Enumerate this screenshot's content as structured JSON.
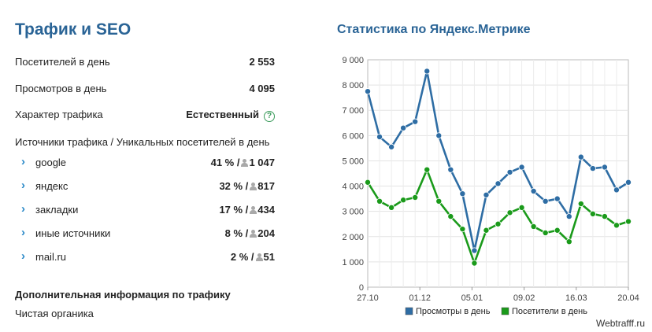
{
  "left": {
    "title": "Трафик и SEO",
    "visitors_label": "Посетителей в день",
    "visitors_value": "2 553",
    "views_label": "Просмотров в день",
    "views_value": "4 095",
    "character_label": "Характер трафика",
    "character_value": "Естественный",
    "help_icon": "?",
    "sources_label": "Источники трафика / Уникальных посетителей в день",
    "sources": [
      {
        "name": "google",
        "percent": "41 % /",
        "count": "1 047"
      },
      {
        "name": "яндекс",
        "percent": "32 % /",
        "count": "817"
      },
      {
        "name": "закладки",
        "percent": "17 % /",
        "count": "434"
      },
      {
        "name": "иные источники",
        "percent": "8 % /",
        "count": "204"
      },
      {
        "name": "mail.ru",
        "percent": "2 % /",
        "count": "51"
      }
    ],
    "extra_title": "Дополнительная информация по трафику",
    "extra_item": "Чистая органика"
  },
  "chart_data": {
    "type": "line",
    "title": "Статистика по Яндекс.Метрике",
    "ylim": [
      0,
      9000
    ],
    "yticks": [
      "0",
      "1 000",
      "2 000",
      "3 000",
      "4 000",
      "5 000",
      "6 000",
      "7 000",
      "8 000",
      "9 000"
    ],
    "xticks": [
      {
        "label": "27.10",
        "index": 0
      },
      {
        "label": "01.12",
        "index": 5
      },
      {
        "label": "05.01",
        "index": 10
      },
      {
        "label": "09.02",
        "index": 15
      },
      {
        "label": "16.03",
        "index": 20
      },
      {
        "label": "20.04",
        "index": 25
      }
    ],
    "grid": true,
    "legend_position": "bottom",
    "series": [
      {
        "name": "Просмотры в день",
        "color": "#2e6da4",
        "values": [
          7750,
          5950,
          5550,
          6300,
          6550,
          8550,
          6000,
          4650,
          3700,
          1450,
          3650,
          4100,
          4550,
          4750,
          3800,
          3400,
          3500,
          2800,
          5150,
          4700,
          4750,
          3850,
          4150
        ]
      },
      {
        "name": "Посетители в день",
        "color": "#1a9a1a",
        "values": [
          4150,
          3400,
          3150,
          3450,
          3550,
          4650,
          3400,
          2800,
          2300,
          950,
          2250,
          2500,
          2950,
          3150,
          2400,
          2150,
          2250,
          1800,
          3300,
          2900,
          2800,
          2450,
          2600
        ]
      }
    ]
  },
  "watermark": "Webtrafff.ru"
}
